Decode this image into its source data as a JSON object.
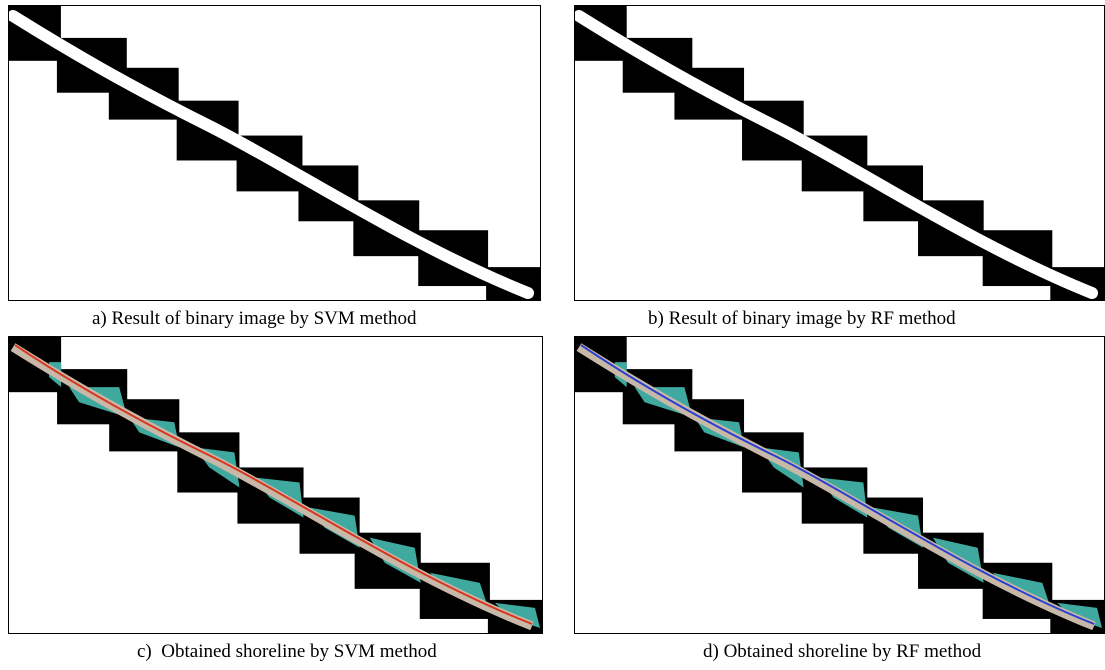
{
  "figure": {
    "panels": [
      {
        "caption": "a) Result of binary image by SVM method"
      },
      {
        "caption": "b) Result of binary image by RF method"
      },
      {
        "caption": "c)  Obtained shoreline by SVM method"
      },
      {
        "caption": "d) Obtained shoreline by RF method"
      }
    ]
  }
}
